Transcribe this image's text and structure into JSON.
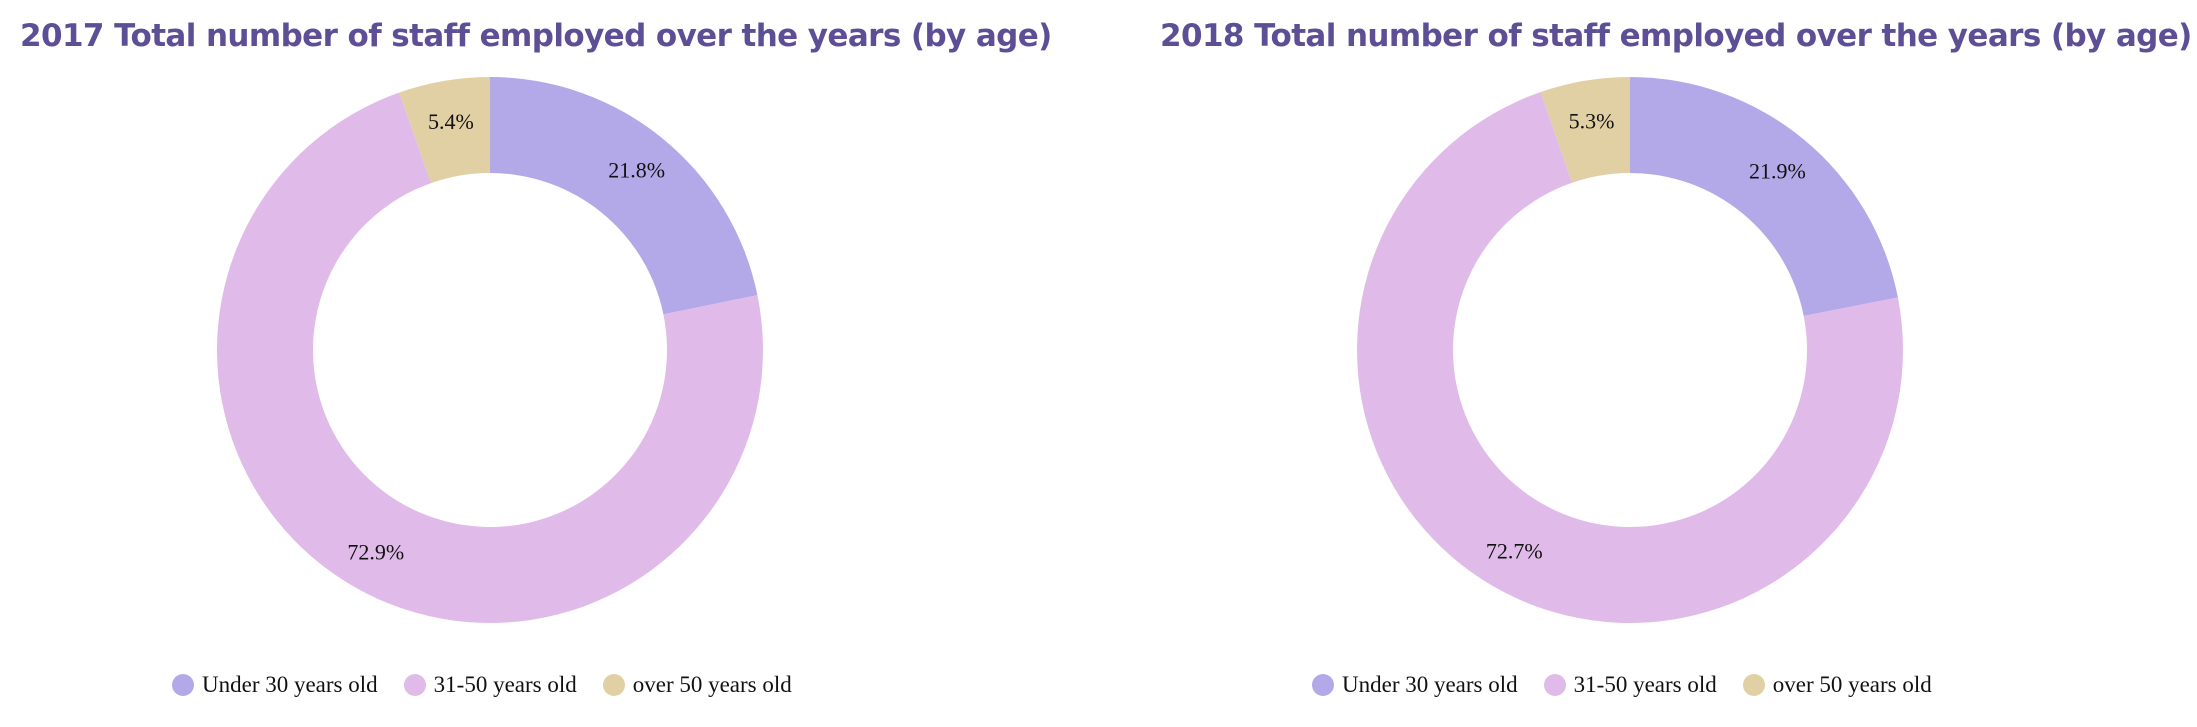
{
  "chart_data": [
    {
      "type": "pie",
      "title": "2017 Total number of staff employed over the years (by age)",
      "categories": [
        "Under 30 years old",
        "31-50 years old",
        "over 50 years old"
      ],
      "values": [
        21.8,
        72.9,
        5.4
      ],
      "value_labels": [
        "21.8%",
        "72.9%",
        "5.4%"
      ],
      "unit": "%",
      "colors": [
        "#b3a9e8",
        "#e0bbe9",
        "#e2d0a5"
      ],
      "donut": true,
      "legend_position": "bottom"
    },
    {
      "type": "pie",
      "title": "2018 Total number of staff employed over the years (by age)",
      "categories": [
        "Under 30 years old",
        "31-50 years old",
        "over 50 years old"
      ],
      "values": [
        21.9,
        72.7,
        5.3
      ],
      "value_labels": [
        "21.9%",
        "72.7%",
        "5.3%"
      ],
      "unit": "%",
      "colors": [
        "#b3a9e8",
        "#e0bbe9",
        "#e2d0a5"
      ],
      "donut": true,
      "legend_position": "bottom"
    }
  ]
}
